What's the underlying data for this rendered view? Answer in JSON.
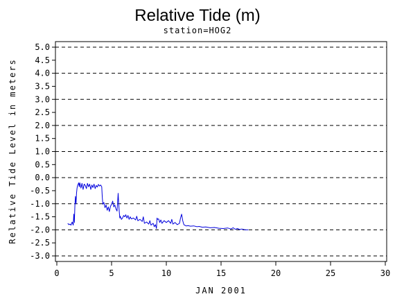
{
  "chart_data": {
    "type": "line",
    "title": "Relative Tide (m)",
    "subtitle": "station=HOG2",
    "xlabel": "JAN 2001",
    "ylabel": "Relative Tide Level in meters",
    "xlim": [
      0,
      30
    ],
    "ylim": [
      -3.0,
      5.0
    ],
    "x_ticks": [
      0,
      5,
      10,
      15,
      20,
      25,
      30
    ],
    "y_ticks": [
      5.0,
      4.5,
      4.0,
      3.5,
      3.0,
      2.5,
      2.0,
      1.5,
      1.0,
      0.5,
      0.0,
      -0.5,
      -1.0,
      -1.5,
      -2.0,
      -2.5,
      -3.0
    ],
    "y_tick_labels": [
      "5.0",
      "4.5",
      "4.0",
      "3.5",
      "3.0",
      "2.5",
      "2.0",
      "1.5",
      "1.0",
      "0.5",
      "0.0",
      "-0.5",
      "-1.0",
      "-1.5",
      "-2.0",
      "-2.5",
      "-3.0"
    ],
    "grid": {
      "y_dashed_at": [
        5.0,
        4.0,
        3.0,
        2.0,
        1.0,
        0.0,
        -1.0,
        -2.0,
        -3.0
      ]
    },
    "series": [
      {
        "color": "#0000dd",
        "points": [
          [
            1.0,
            -1.75
          ],
          [
            1.1,
            -1.8
          ],
          [
            1.2,
            -1.78
          ],
          [
            1.3,
            -1.82
          ],
          [
            1.4,
            -1.7
          ],
          [
            1.5,
            -1.82
          ],
          [
            1.55,
            -1.4
          ],
          [
            1.6,
            -1.72
          ],
          [
            1.65,
            -1.05
          ],
          [
            1.7,
            -0.72
          ],
          [
            1.75,
            -1.0
          ],
          [
            1.8,
            -0.6
          ],
          [
            1.85,
            -0.4
          ],
          [
            1.9,
            -0.3
          ],
          [
            2.0,
            -0.2
          ],
          [
            2.05,
            -0.35
          ],
          [
            2.1,
            -0.2
          ],
          [
            2.2,
            -0.4
          ],
          [
            2.3,
            -0.22
          ],
          [
            2.4,
            -0.45
          ],
          [
            2.5,
            -0.25
          ],
          [
            2.6,
            -0.3
          ],
          [
            2.7,
            -0.42
          ],
          [
            2.8,
            -0.22
          ],
          [
            2.9,
            -0.35
          ],
          [
            3.0,
            -0.25
          ],
          [
            3.1,
            -0.45
          ],
          [
            3.2,
            -0.28
          ],
          [
            3.3,
            -0.38
          ],
          [
            3.4,
            -0.25
          ],
          [
            3.5,
            -0.42
          ],
          [
            3.6,
            -0.3
          ],
          [
            3.7,
            -0.36
          ],
          [
            3.8,
            -0.26
          ],
          [
            3.9,
            -0.32
          ],
          [
            4.0,
            -0.28
          ],
          [
            4.1,
            -0.35
          ],
          [
            4.15,
            -0.75
          ],
          [
            4.2,
            -1.02
          ],
          [
            4.3,
            -0.95
          ],
          [
            4.4,
            -1.15
          ],
          [
            4.5,
            -1.05
          ],
          [
            4.6,
            -1.25
          ],
          [
            4.7,
            -1.12
          ],
          [
            4.8,
            -1.3
          ],
          [
            4.9,
            -1.1
          ],
          [
            5.0,
            -1.02
          ],
          [
            5.1,
            -0.9
          ],
          [
            5.2,
            -1.12
          ],
          [
            5.3,
            -1.05
          ],
          [
            5.4,
            -1.2
          ],
          [
            5.5,
            -1.28
          ],
          [
            5.55,
            -0.95
          ],
          [
            5.6,
            -0.6
          ],
          [
            5.65,
            -1.0
          ],
          [
            5.7,
            -1.3
          ],
          [
            5.75,
            -1.55
          ],
          [
            5.8,
            -1.48
          ],
          [
            5.9,
            -1.6
          ],
          [
            6.0,
            -1.55
          ],
          [
            6.1,
            -1.45
          ],
          [
            6.2,
            -1.5
          ],
          [
            6.3,
            -1.42
          ],
          [
            6.4,
            -1.55
          ],
          [
            6.5,
            -1.45
          ],
          [
            6.6,
            -1.6
          ],
          [
            6.7,
            -1.5
          ],
          [
            6.8,
            -1.58
          ],
          [
            7.0,
            -1.55
          ],
          [
            7.2,
            -1.62
          ],
          [
            7.3,
            -1.48
          ],
          [
            7.4,
            -1.65
          ],
          [
            7.6,
            -1.6
          ],
          [
            7.8,
            -1.68
          ],
          [
            7.9,
            -1.5
          ],
          [
            8.0,
            -1.75
          ],
          [
            8.2,
            -1.7
          ],
          [
            8.4,
            -1.78
          ],
          [
            8.5,
            -1.65
          ],
          [
            8.6,
            -1.82
          ],
          [
            8.8,
            -1.75
          ],
          [
            8.9,
            -1.88
          ],
          [
            9.0,
            -1.8
          ],
          [
            9.1,
            -1.95
          ],
          [
            9.15,
            -1.55
          ],
          [
            9.2,
            -1.6
          ],
          [
            9.3,
            -1.58
          ],
          [
            9.4,
            -1.72
          ],
          [
            9.5,
            -1.62
          ],
          [
            9.6,
            -1.75
          ],
          [
            9.8,
            -1.65
          ],
          [
            10.0,
            -1.72
          ],
          [
            10.2,
            -1.65
          ],
          [
            10.4,
            -1.75
          ],
          [
            10.5,
            -1.6
          ],
          [
            10.6,
            -1.78
          ],
          [
            10.8,
            -1.72
          ],
          [
            11.0,
            -1.8
          ],
          [
            11.2,
            -1.75
          ],
          [
            11.3,
            -1.55
          ],
          [
            11.4,
            -1.4
          ],
          [
            11.5,
            -1.65
          ],
          [
            11.6,
            -1.8
          ],
          [
            11.8,
            -1.85
          ],
          [
            12.0,
            -1.84
          ],
          [
            12.2,
            -1.86
          ],
          [
            12.5,
            -1.85
          ],
          [
            12.8,
            -1.88
          ],
          [
            13.0,
            -1.87
          ],
          [
            13.3,
            -1.9
          ],
          [
            13.6,
            -1.89
          ],
          [
            14.0,
            -1.92
          ],
          [
            14.4,
            -1.91
          ],
          [
            14.8,
            -1.94
          ],
          [
            15.2,
            -1.95
          ],
          [
            15.6,
            -1.93
          ],
          [
            15.9,
            -1.97
          ],
          [
            16.1,
            -1.92
          ],
          [
            16.3,
            -1.98
          ],
          [
            16.5,
            -1.95
          ],
          [
            16.7,
            -1.99
          ],
          [
            16.9,
            -1.97
          ],
          [
            17.2,
            -2.0
          ],
          [
            17.5,
            -2.0
          ]
        ]
      }
    ]
  }
}
